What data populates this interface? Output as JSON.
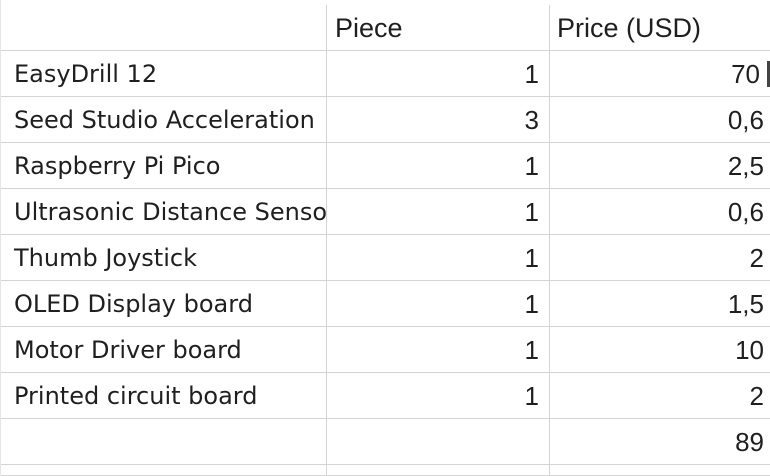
{
  "headers": [
    "",
    "Piece",
    "Price (USD)"
  ],
  "rows": [
    {
      "name": "EasyDrill 12",
      "piece": "1",
      "price": "70"
    },
    {
      "name": "Seed Studio Acceleration",
      "piece": "3",
      "price": "0,6"
    },
    {
      "name": "Raspberry Pi Pico",
      "piece": "1",
      "price": "2,5"
    },
    {
      "name": "Ultrasonic Distance Sensor",
      "piece": "1",
      "price": "0,6"
    },
    {
      "name": "Thumb Joystick",
      "piece": "1",
      "price": "2"
    },
    {
      "name": "OLED Display board",
      "piece": "1",
      "price": "1,5"
    },
    {
      "name": "Motor Driver board",
      "piece": "1",
      "price": "10"
    },
    {
      "name": "Printed circuit board",
      "piece": "1",
      "price": "2"
    }
  ],
  "total": {
    "name": "",
    "piece": "",
    "price": "89"
  },
  "colors": {
    "grid": "#d4d4d4",
    "text": "#1f1f1f",
    "background": "#ffffff"
  }
}
